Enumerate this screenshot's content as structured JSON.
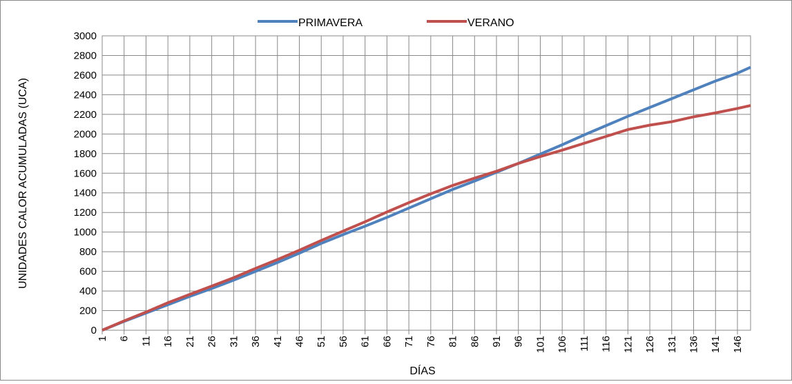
{
  "chart_data": {
    "type": "line",
    "x_label": "DÍAS",
    "y_label": "UNIDADES CALOR ACUMULADAS (UCA)",
    "x": [
      1,
      6,
      11,
      16,
      21,
      26,
      31,
      36,
      41,
      46,
      51,
      56,
      61,
      66,
      71,
      76,
      81,
      86,
      91,
      96,
      101,
      106,
      111,
      116,
      121,
      126,
      131,
      136,
      141,
      146,
      149
    ],
    "series": [
      {
        "name": "PRIMAVERA",
        "color": "#4f81bd",
        "values": [
          0,
          90,
          175,
          260,
          345,
          425,
          510,
          600,
          690,
          785,
          885,
          975,
          1060,
          1150,
          1245,
          1340,
          1435,
          1520,
          1610,
          1700,
          1795,
          1890,
          1990,
          2085,
          2180,
          2270,
          2360,
          2450,
          2540,
          2620,
          2680
        ]
      },
      {
        "name": "VERANO",
        "color": "#c0504d",
        "values": [
          0,
          95,
          185,
          280,
          365,
          450,
          535,
          630,
          720,
          815,
          915,
          1010,
          1105,
          1205,
          1300,
          1390,
          1475,
          1550,
          1620,
          1700,
          1770,
          1835,
          1905,
          1975,
          2045,
          2090,
          2125,
          2175,
          2215,
          2260,
          2290
        ]
      }
    ],
    "xlim": [
      1,
      149
    ],
    "xticks": [
      1,
      6,
      11,
      16,
      21,
      26,
      31,
      36,
      41,
      46,
      51,
      56,
      61,
      66,
      71,
      76,
      81,
      86,
      91,
      96,
      101,
      106,
      111,
      116,
      121,
      126,
      131,
      136,
      141,
      146
    ],
    "ylim": [
      0,
      3000
    ],
    "yticks": [
      0,
      200,
      400,
      600,
      800,
      1000,
      1200,
      1400,
      1600,
      1800,
      2000,
      2200,
      2400,
      2600,
      2800,
      3000
    ],
    "grid": true,
    "legend": "top"
  }
}
